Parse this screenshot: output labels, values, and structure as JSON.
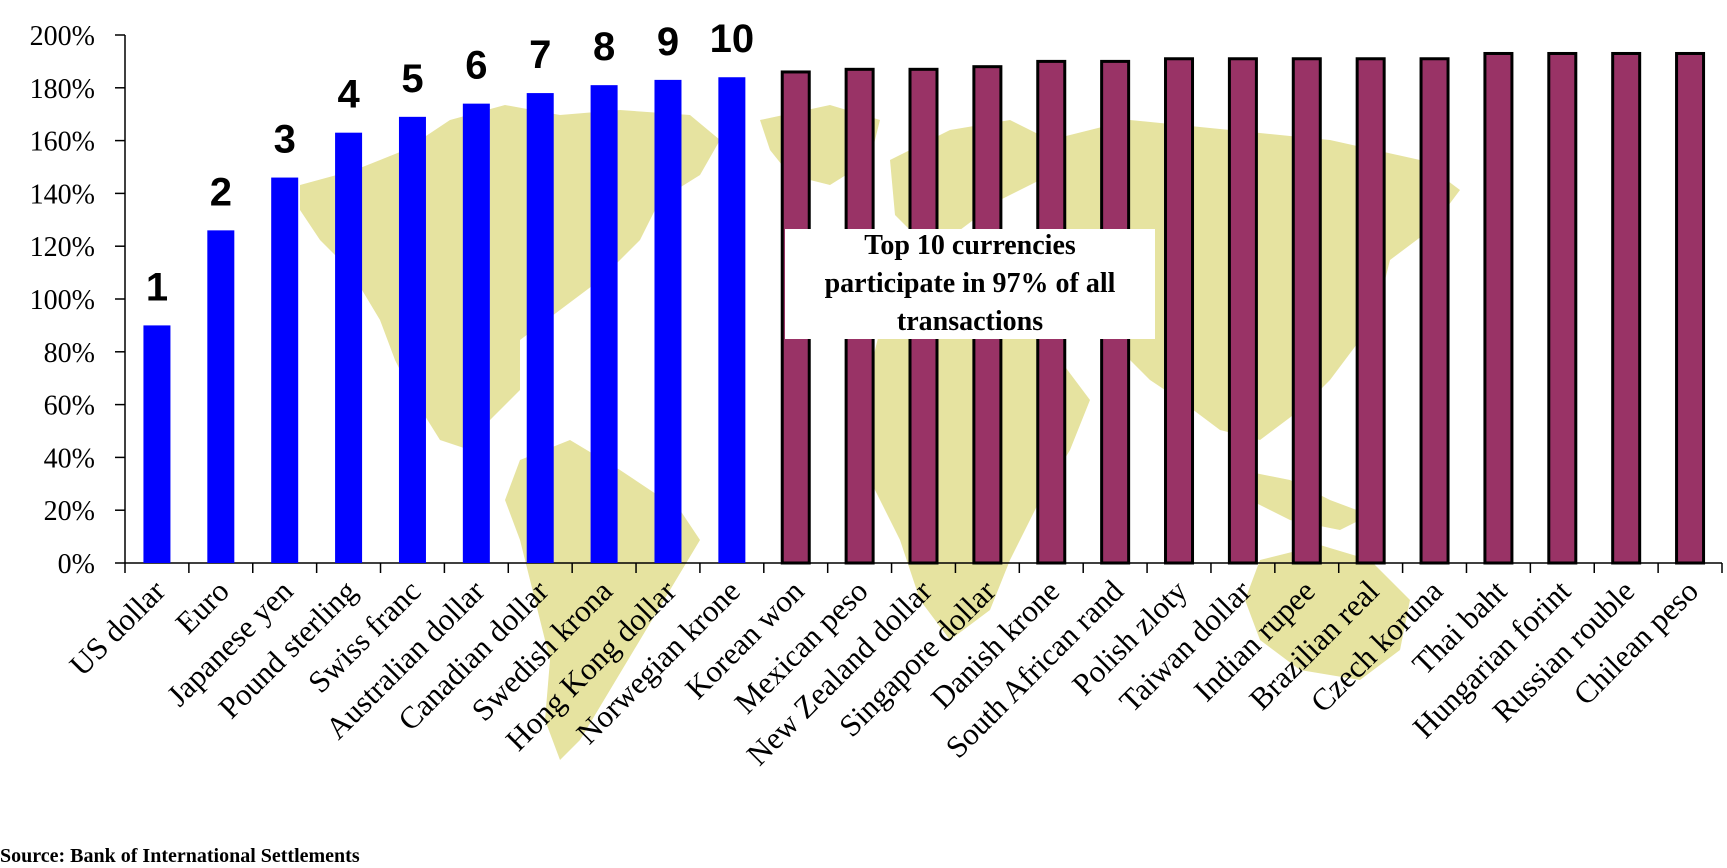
{
  "chart_data": {
    "type": "bar",
    "categories": [
      "US dollar",
      "Euro",
      "Japanese yen",
      "Pound sterling",
      "Swiss franc",
      "Australian dollar",
      "Canadian dollar",
      "Swedish krona",
      "Hong Kong dollar",
      "Norwegian krone",
      "Korean won",
      "Mexican peso",
      "New Zealand dollar",
      "Singapore dollar",
      "Danish krone",
      "South African rand",
      "Polish zloty",
      "Taiwan dollar",
      "Indian rupee",
      "Brazilian real",
      "Czech koruna",
      "Thai baht",
      "Hungarian forint",
      "Russian rouble",
      "Chilean peso"
    ],
    "values": [
      90,
      126,
      146,
      163,
      169,
      174,
      178,
      181,
      183,
      184,
      186,
      187,
      187,
      188,
      190,
      190,
      191,
      191,
      191,
      191,
      191,
      193,
      193,
      193,
      193
    ],
    "rank_labels": [
      "1",
      "2",
      "3",
      "4",
      "5",
      "6",
      "7",
      "8",
      "9",
      "10"
    ],
    "highlight_count": 10,
    "y_ticks": [
      "0%",
      "20%",
      "40%",
      "60%",
      "80%",
      "100%",
      "120%",
      "140%",
      "160%",
      "180%",
      "200%"
    ],
    "ylim": [
      0,
      200
    ],
    "title": "",
    "xlabel": "",
    "ylabel": "",
    "grid": false,
    "colors": {
      "top10": "#0000ff",
      "others": "#993366",
      "others_outline": "#000000",
      "map": "#e6e3a0"
    },
    "background_image": "world-map",
    "annotation": "Top 10 currencies\nparticipate in 97% of all\ntransactions",
    "source": "Source: Bank of International Settlements"
  }
}
